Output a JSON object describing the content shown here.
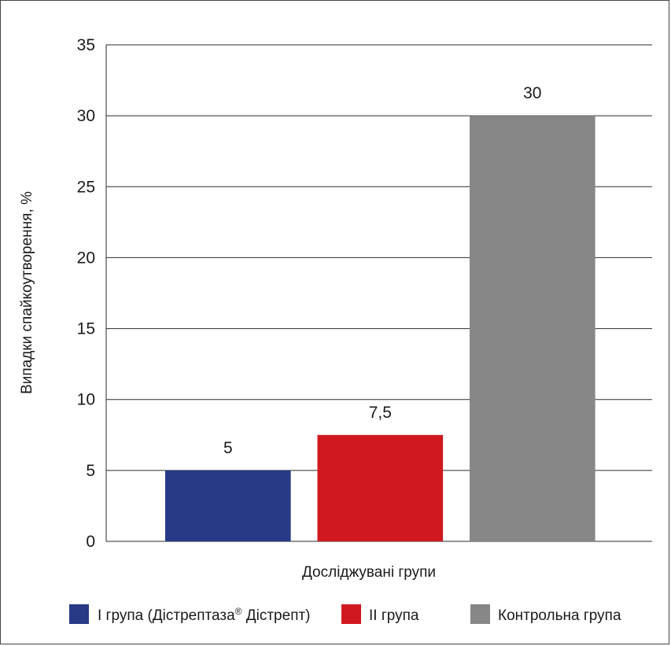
{
  "chart_data": {
    "type": "bar",
    "categories": [
      "I група (Дістрептаза® Дістрепт)",
      "II група",
      "Контрольна група"
    ],
    "values": [
      5,
      7.5,
      30
    ],
    "value_labels": [
      "5",
      "7,5",
      "30"
    ],
    "colors": [
      "#283a85",
      "#d0191e",
      "#878787"
    ],
    "xlabel": "Досліджувані групи",
    "ylabel": "Випадки спайкоутворення, %",
    "ylim": [
      0,
      35
    ],
    "yticks": [
      0,
      5,
      10,
      15,
      20,
      25,
      30,
      35
    ],
    "grid": true,
    "legend_position": "bottom",
    "legend": [
      {
        "label": "I група (Дістрептаза",
        "sup": "®",
        "label_tail": " Дістрепт)",
        "color": "#283a85"
      },
      {
        "label": "II група",
        "color": "#d0191e"
      },
      {
        "label": "Контрольна група",
        "color": "#878787"
      }
    ]
  }
}
